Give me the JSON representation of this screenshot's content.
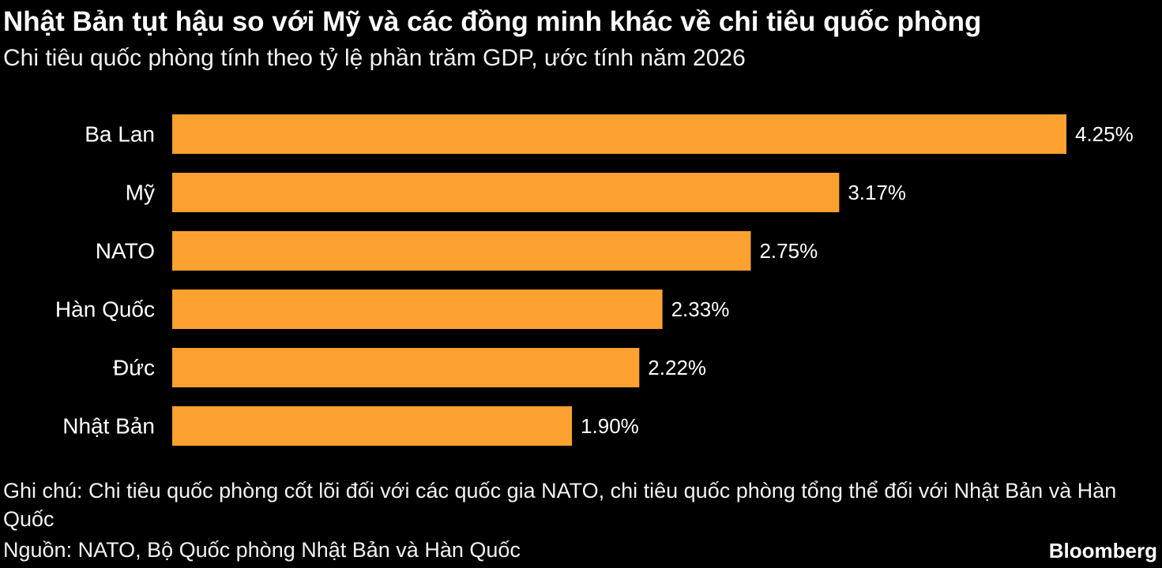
{
  "header": {
    "title": "Nhật Bản tụt hậu so với Mỹ và các đồng minh khác về chi tiêu quốc phòng",
    "subtitle": "Chi tiêu quốc phòng tính theo tỷ lệ phần trăm GDP, ước tính năm 2026"
  },
  "footer": {
    "note": "Ghi chú: Chi tiêu quốc phòng cốt lõi đối với các quốc gia NATO, chi tiêu quốc phòng tổng thể đối với Nhật Bản và Hàn Quốc",
    "source": "Nguồn: NATO, Bộ Quốc phòng Nhật Bản và Hàn Quốc",
    "brand": "Bloomberg"
  },
  "colors": {
    "background": "#000000",
    "bar": "#fca130",
    "text": "#ffffff"
  },
  "chart_data": {
    "type": "bar",
    "orientation": "horizontal",
    "title": "Nhật Bản tụt hậu so với Mỹ và các đồng minh khác về chi tiêu quốc phòng",
    "subtitle": "Chi tiêu quốc phòng tính theo tỷ lệ phần trăm GDP, ước tính năm 2026",
    "categories": [
      "Ba Lan",
      "Mỹ",
      "NATO",
      "Hàn Quốc",
      "Đức",
      "Nhật Bản"
    ],
    "values": [
      4.25,
      3.17,
      2.75,
      2.33,
      2.22,
      1.9
    ],
    "value_labels": [
      "4.25%",
      "3.17%",
      "2.75%",
      "2.33%",
      "2.22%",
      "1.90%"
    ],
    "xlim": [
      0,
      4.25
    ],
    "grid": false,
    "legend": "none"
  }
}
